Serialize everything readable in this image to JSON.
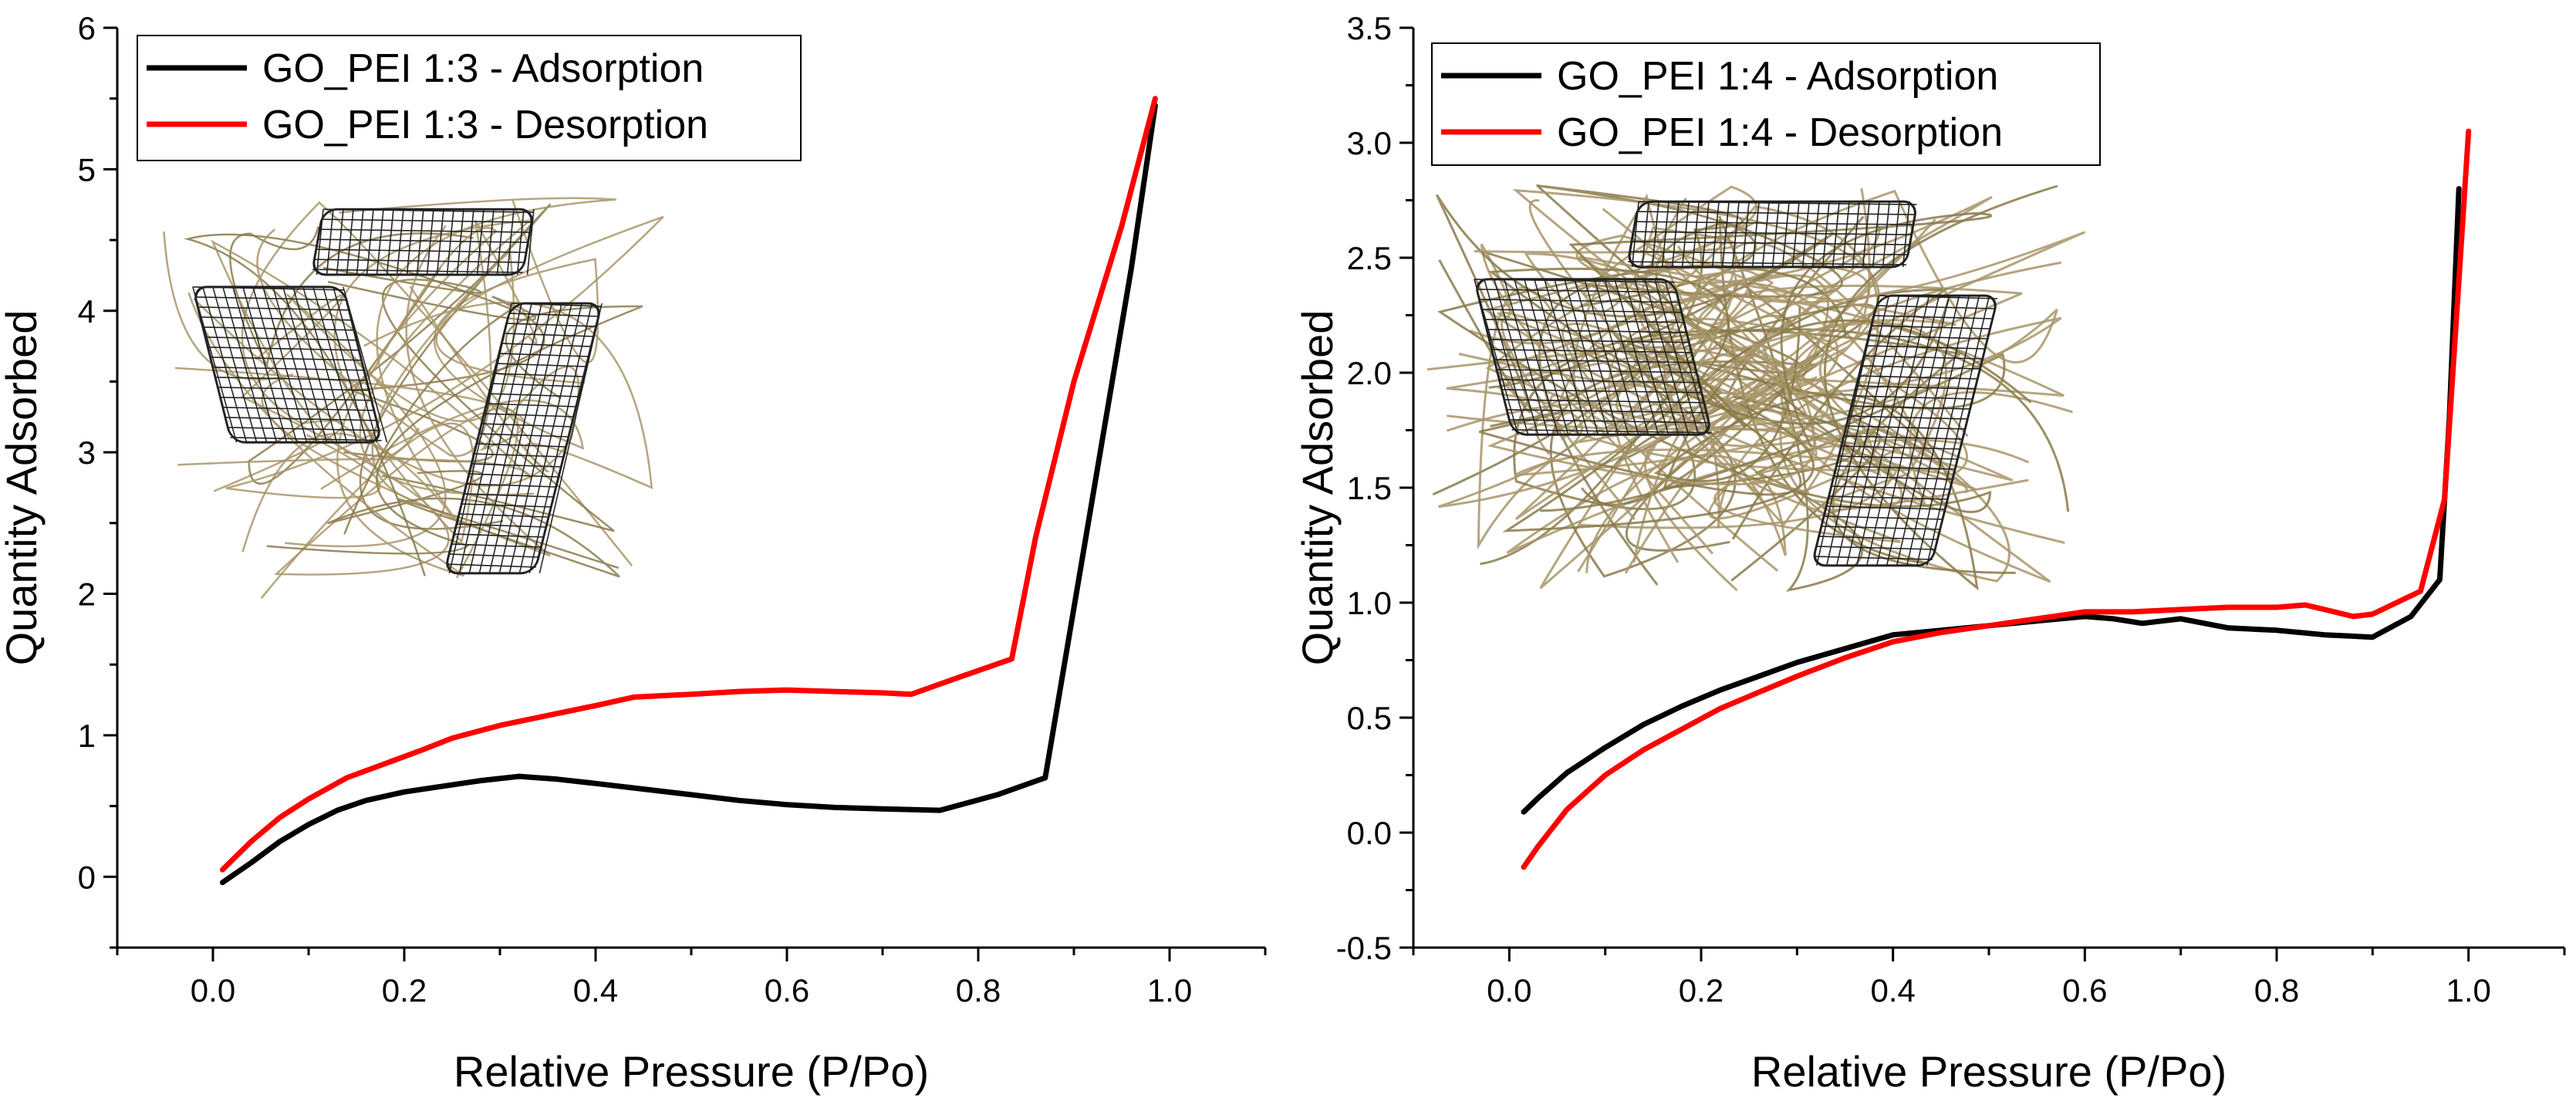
{
  "chart_data": [
    {
      "type": "line",
      "title": "",
      "xlabel": "Relative Pressure (P/Po)",
      "ylabel": "Quantity Adsorbed",
      "xlim": [
        -0.1,
        1.1
      ],
      "ylim": [
        -0.5,
        6
      ],
      "xticks": [
        0.0,
        0.2,
        0.4,
        0.6,
        0.8,
        1.0
      ],
      "xtick_labels": [
        "0.0",
        "0.2",
        "0.4",
        "0.6",
        "0.8",
        "1.0"
      ],
      "yticks": [
        0,
        1,
        2,
        3,
        4,
        5,
        6
      ],
      "ytick_labels": [
        "0",
        "1",
        "2",
        "3",
        "4",
        "5",
        "6"
      ],
      "legend_position": "top-left",
      "series": [
        {
          "name": "GO_PEI 1:3 - Adsorption",
          "color": "#000000",
          "x": [
            0.01,
            0.04,
            0.07,
            0.1,
            0.13,
            0.16,
            0.2,
            0.24,
            0.28,
            0.32,
            0.36,
            0.4,
            0.45,
            0.5,
            0.55,
            0.6,
            0.65,
            0.7,
            0.76,
            0.82,
            0.87,
            0.9,
            0.93,
            0.96,
            0.985
          ],
          "y": [
            -0.04,
            0.1,
            0.25,
            0.37,
            0.47,
            0.54,
            0.6,
            0.64,
            0.68,
            0.71,
            0.69,
            0.66,
            0.62,
            0.58,
            0.54,
            0.51,
            0.49,
            0.48,
            0.47,
            0.58,
            0.7,
            1.9,
            3.1,
            4.3,
            5.45
          ]
        },
        {
          "name": "GO_PEI 1:3 - Desorption",
          "color": "#ff0000",
          "x": [
            0.01,
            0.04,
            0.07,
            0.1,
            0.14,
            0.18,
            0.22,
            0.25,
            0.3,
            0.35,
            0.4,
            0.44,
            0.5,
            0.55,
            0.6,
            0.65,
            0.7,
            0.73,
            0.78,
            0.835,
            0.86,
            0.9,
            0.95,
            0.985
          ],
          "y": [
            0.05,
            0.25,
            0.42,
            0.55,
            0.7,
            0.8,
            0.9,
            0.98,
            1.07,
            1.14,
            1.21,
            1.27,
            1.29,
            1.31,
            1.32,
            1.31,
            1.3,
            1.29,
            1.41,
            1.54,
            2.4,
            3.5,
            4.6,
            5.5
          ]
        }
      ]
    },
    {
      "type": "line",
      "title": "",
      "xlabel": "Relative Pressure (P/Po)",
      "ylabel": "Quantity Adsorbed",
      "xlim": [
        -0.1,
        1.1
      ],
      "ylim": [
        -0.5,
        3.5
      ],
      "xticks": [
        0.0,
        0.2,
        0.4,
        0.6,
        0.8,
        1.0
      ],
      "xtick_labels": [
        "0.0",
        "0.2",
        "0.4",
        "0.6",
        "0.8",
        "1.0"
      ],
      "yticks": [
        -0.5,
        0.0,
        0.5,
        1.0,
        1.5,
        2.0,
        2.5,
        3.0,
        3.5
      ],
      "ytick_labels": [
        "-0.5",
        "0.0",
        "0.5",
        "1.0",
        "1.5",
        "2.0",
        "2.5",
        "3.0",
        "3.5"
      ],
      "legend_position": "top-left",
      "series": [
        {
          "name": "GO_PEI 1:4 - Adsorption",
          "color": "#000000",
          "x": [
            0.015,
            0.03,
            0.06,
            0.1,
            0.14,
            0.18,
            0.22,
            0.26,
            0.3,
            0.35,
            0.4,
            0.45,
            0.5,
            0.55,
            0.6,
            0.63,
            0.66,
            0.7,
            0.75,
            0.8,
            0.85,
            0.9,
            0.94,
            0.97,
            0.98,
            0.99
          ],
          "y": [
            0.09,
            0.15,
            0.26,
            0.37,
            0.47,
            0.55,
            0.62,
            0.68,
            0.74,
            0.8,
            0.86,
            0.88,
            0.9,
            0.92,
            0.94,
            0.93,
            0.91,
            0.93,
            0.89,
            0.88,
            0.86,
            0.85,
            0.94,
            1.1,
            1.8,
            2.8
          ]
        },
        {
          "name": "GO_PEI 1:4 - Desorption",
          "color": "#ff0000",
          "x": [
            0.015,
            0.03,
            0.06,
            0.1,
            0.14,
            0.18,
            0.22,
            0.26,
            0.3,
            0.35,
            0.4,
            0.45,
            0.5,
            0.55,
            0.6,
            0.65,
            0.7,
            0.75,
            0.8,
            0.83,
            0.86,
            0.88,
            0.9,
            0.95,
            0.975,
            0.99,
            1.0
          ],
          "y": [
            -0.15,
            -0.06,
            0.1,
            0.25,
            0.36,
            0.45,
            0.54,
            0.61,
            0.68,
            0.76,
            0.83,
            0.87,
            0.9,
            0.93,
            0.96,
            0.96,
            0.97,
            0.98,
            0.98,
            0.99,
            0.96,
            0.94,
            0.95,
            1.05,
            1.45,
            2.4,
            3.05
          ]
        }
      ]
    }
  ]
}
